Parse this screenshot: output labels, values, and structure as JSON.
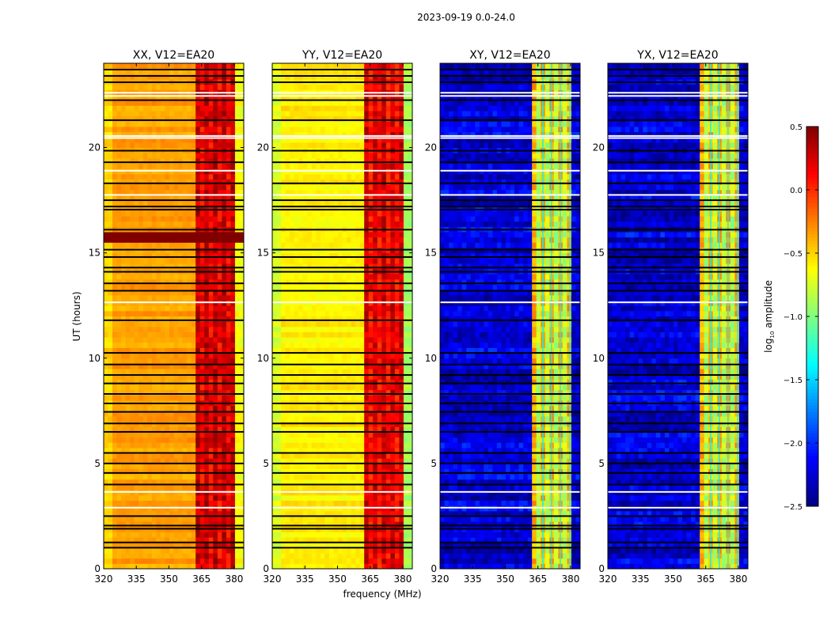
{
  "figure_title": "2023-09-19 0.0-24.0",
  "xlabel": "frequency (MHz)",
  "ylabel": "UT (hours)",
  "colorbar": {
    "label_main": "log",
    "label_sub": "10",
    "label_rest": " amplitude",
    "range": [
      -2.5,
      0.5
    ],
    "ticks": [
      0.5,
      0.0,
      -0.5,
      -1.0,
      -1.5,
      -2.0,
      -2.5
    ],
    "tick_labels": [
      "0.5",
      "0.0",
      "−0.5",
      "−1.0",
      "−1.5",
      "−2.0",
      "−2.5"
    ],
    "colormap": "jet"
  },
  "chart_data": [
    {
      "type": "heatmap",
      "title": "XX, V12=EA20",
      "xlim": [
        320,
        384.4
      ],
      "ylim": [
        0,
        24
      ],
      "xticks": [
        320,
        335,
        350,
        365,
        380
      ],
      "xtick_labels": [
        "320",
        "335",
        "350",
        "365",
        "380"
      ],
      "yticks": [
        0,
        5,
        10,
        15,
        20
      ],
      "ytick_labels": [
        "0",
        "5",
        "10",
        "15",
        "20"
      ],
      "base_log_amp": -0.35,
      "rfi_band_mhz": [
        362,
        380
      ],
      "rfi_log_amp": 0.15,
      "saturated_time_ranges": [
        [
          15.5,
          16.05
        ]
      ]
    },
    {
      "type": "heatmap",
      "title": "YY, V12=EA20",
      "xlim": [
        320,
        384.4
      ],
      "ylim": [
        0,
        24
      ],
      "xticks": [
        320,
        335,
        350,
        365,
        380
      ],
      "xtick_labels": [
        "320",
        "335",
        "350",
        "365",
        "380"
      ],
      "yticks": [
        0,
        5,
        10,
        15,
        20
      ],
      "ytick_labels": [
        "0",
        "5",
        "10",
        "15",
        "20"
      ],
      "base_log_amp": -0.58,
      "rfi_band_mhz": [
        362,
        380
      ],
      "rfi_log_amp": 0.1,
      "saturated_time_ranges": []
    },
    {
      "type": "heatmap",
      "title": "XY, V12=EA20",
      "xlim": [
        320,
        384.4
      ],
      "ylim": [
        0,
        24
      ],
      "xticks": [
        320,
        335,
        350,
        365,
        380
      ],
      "xtick_labels": [
        "320",
        "335",
        "350",
        "365",
        "380"
      ],
      "yticks": [
        0,
        5,
        10,
        15,
        20
      ],
      "ytick_labels": [
        "0",
        "5",
        "10",
        "15",
        "20"
      ],
      "base_log_amp": -2.25,
      "rfi_band_mhz": [
        362,
        380
      ],
      "rfi_log_amp": -0.85,
      "saturated_time_ranges": []
    },
    {
      "type": "heatmap",
      "title": "YX, V12=EA20",
      "xlim": [
        320,
        384.4
      ],
      "ylim": [
        0,
        24
      ],
      "xticks": [
        320,
        335,
        350,
        365,
        380
      ],
      "xtick_labels": [
        "320",
        "335",
        "350",
        "365",
        "380"
      ],
      "yticks": [
        0,
        5,
        10,
        15,
        20
      ],
      "ytick_labels": [
        "0",
        "5",
        "10",
        "15",
        "20"
      ],
      "base_log_amp": -2.25,
      "rfi_band_mhz": [
        362,
        380
      ],
      "rfi_log_amp": -0.85,
      "saturated_time_ranges": []
    }
  ],
  "flagged_black_hours": [
    1.0,
    1.25,
    1.9,
    2.05,
    2.5,
    4.0,
    4.55,
    5.0,
    5.5,
    6.5,
    6.9,
    7.45,
    7.85,
    8.3,
    8.8,
    9.2,
    9.7,
    10.25,
    11.8,
    13.2,
    13.55,
    14.1,
    14.3,
    14.8,
    15.15,
    16.1,
    17.05,
    17.2,
    17.5,
    18.3,
    19.3,
    19.85,
    21.3,
    22.25,
    23.1,
    23.4,
    23.7
  ],
  "flagged_white_hours": [
    2.9,
    3.65,
    12.65,
    17.75,
    18.9,
    20.45,
    20.55,
    22.45,
    22.6
  ]
}
